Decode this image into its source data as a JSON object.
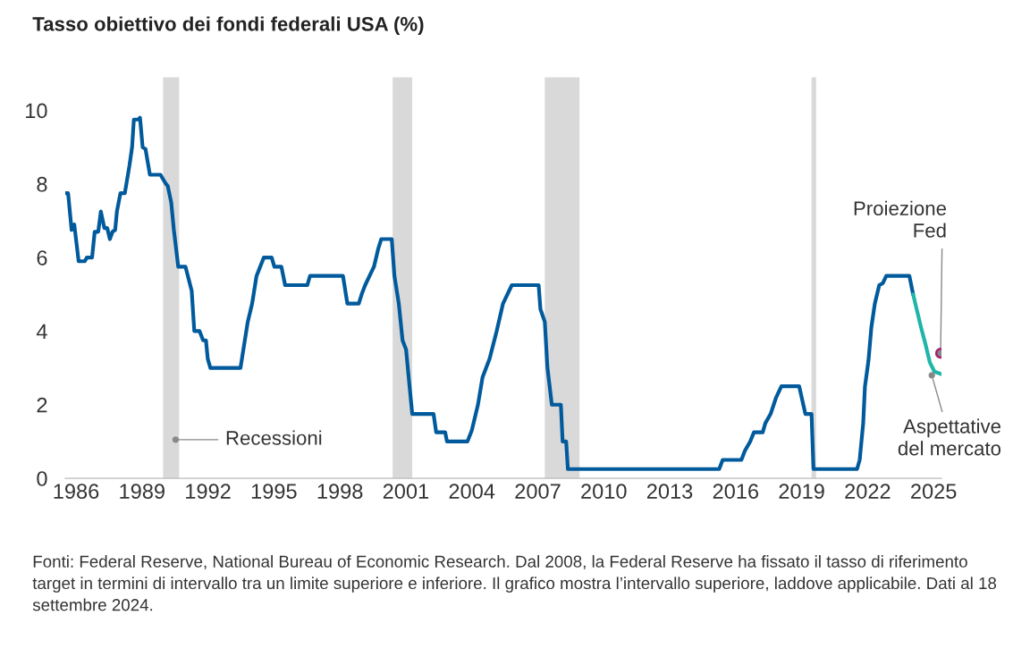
{
  "chart_data": {
    "type": "line",
    "title": "Tasso obiettivo dei fondi federali USA (%)",
    "xlim": [
      1985.51,
      2025.36
    ],
    "xticks": [
      1986,
      1989,
      1992,
      1995,
      1998,
      2001,
      2004,
      2007,
      2010,
      2013,
      2016,
      2019,
      2022,
      2025
    ],
    "ylim": [
      0,
      10
    ],
    "yticks": [
      0,
      2,
      4,
      6,
      8,
      10
    ],
    "grid": false,
    "legend": false,
    "series": [
      {
        "color": "#005a9c",
        "x": [
          1985.51,
          1985.64,
          1985.8,
          1985.92,
          1986.12,
          1986.4,
          1986.49,
          1986.73,
          1986.85,
          1987.01,
          1987.13,
          1987.29,
          1987.42,
          1987.54,
          1987.66,
          1987.78,
          1987.86,
          1988.02,
          1988.22,
          1988.43,
          1988.55,
          1988.63,
          1988.83,
          1988.91,
          1989.03,
          1989.16,
          1989.36,
          1989.84,
          1990.09,
          1990.17,
          1990.33,
          1990.45,
          1990.65,
          1990.98,
          1991.26,
          1991.38,
          1991.62,
          1991.78,
          1991.91,
          1991.99,
          1992.11,
          1993.48,
          1993.81,
          1994.01,
          1994.21,
          1994.54,
          1994.9,
          1995.02,
          1995.34,
          1995.51,
          1996.52,
          1996.64,
          1998.14,
          1998.34,
          1998.86,
          1998.99,
          1999.15,
          1999.35,
          1999.55,
          1999.75,
          1999.88,
          2000.36,
          2000.48,
          2000.68,
          2000.85,
          2001.01,
          2001.17,
          2001.29,
          2002.26,
          2002.38,
          2002.79,
          2002.87,
          2003.8,
          2004.0,
          2004.28,
          2004.49,
          2004.81,
          2005.13,
          2005.42,
          2005.82,
          2007.04,
          2007.12,
          2007.32,
          2007.44,
          2007.64,
          2008.05,
          2008.13,
          2008.29,
          2008.37,
          2015.25,
          2015.41,
          2016.26,
          2016.42,
          2016.66,
          2016.83,
          2017.23,
          2017.35,
          2017.59,
          2017.84,
          2018.08,
          2018.89,
          2019.17,
          2019.45,
          2019.54,
          2021.52,
          2021.64,
          2021.8,
          2021.88,
          2022.04,
          2022.17,
          2022.33,
          2022.53,
          2022.69,
          2022.85,
          2023.9,
          2024.07
        ],
        "values": [
          7.75,
          7.75,
          6.75,
          6.9,
          5.9,
          5.9,
          6.0,
          6.0,
          6.7,
          6.7,
          7.25,
          6.8,
          6.8,
          6.5,
          6.7,
          6.75,
          7.25,
          7.75,
          7.75,
          8.5,
          9.0,
          9.75,
          9.75,
          9.8,
          9.0,
          8.95,
          8.25,
          8.25,
          8.0,
          7.95,
          7.5,
          6.75,
          5.75,
          5.75,
          5.1,
          4.0,
          4.0,
          3.75,
          3.75,
          3.25,
          3.0,
          3.0,
          4.25,
          4.75,
          5.5,
          6.0,
          6.0,
          5.75,
          5.75,
          5.25,
          5.25,
          5.5,
          5.5,
          4.75,
          4.75,
          5.0,
          5.25,
          5.5,
          5.75,
          6.25,
          6.5,
          6.5,
          5.5,
          4.75,
          3.75,
          3.5,
          2.5,
          1.75,
          1.75,
          1.25,
          1.25,
          1.0,
          1.0,
          1.3,
          2.0,
          2.75,
          3.25,
          4.0,
          4.75,
          5.25,
          5.25,
          4.6,
          4.25,
          3.0,
          2.0,
          2.0,
          1.0,
          1.0,
          0.25,
          0.25,
          0.5,
          0.5,
          0.75,
          1.0,
          1.25,
          1.25,
          1.5,
          1.75,
          2.2,
          2.5,
          2.5,
          1.75,
          1.75,
          0.25,
          0.25,
          0.5,
          1.5,
          2.5,
          3.2,
          4.1,
          4.75,
          5.25,
          5.3,
          5.5,
          5.5,
          5.0
        ]
      },
      {
        "type": "line",
        "color": "#1fb5a8",
        "x": [
          2024.07,
          2024.23,
          2024.43,
          2024.63,
          2024.83,
          2025.04,
          2025.36
        ],
        "values": [
          5.0,
          4.6,
          4.1,
          3.65,
          3.15,
          2.9,
          2.83
        ]
      },
      {
        "type": "scatter",
        "color": "#a51f6e",
        "x": [
          2025.32
        ],
        "values": [
          3.4
        ]
      }
    ],
    "bands": [
      {
        "axis": "x",
        "from": 1989.96,
        "to": 1990.69,
        "color": "#d9d9d9"
      },
      {
        "axis": "x",
        "from": 2000.4,
        "to": 2001.29,
        "color": "#d9d9d9"
      },
      {
        "axis": "x",
        "from": 2007.32,
        "to": 2008.9,
        "color": "#d9d9d9"
      },
      {
        "axis": "x",
        "from": 2019.45,
        "to": 2019.66,
        "color": "#d9d9d9"
      }
    ],
    "annotations": [
      {
        "text": "Recessioni",
        "x": 1990.53,
        "y": 1.05
      },
      {
        "text": "Proiezione\nFed",
        "x": 2025.32,
        "y": 3.4
      },
      {
        "text": "Aspettative\ndel mercato",
        "x": 2024.92,
        "y": 2.8
      },
      "Fonti: Federal Reserve, National Bureau of Economic Research. Dal 2008, la Federal Reserve ha fissato il tasso di riferimento target in termini di intervallo tra un limite superiore e inferiore. Il grafico mostra l’intervallo superiore, laddove applicabile. Dati al 18 settembre 2024."
    ]
  }
}
